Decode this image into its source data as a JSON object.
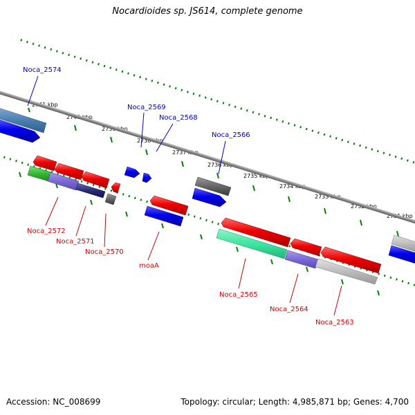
{
  "title": "Nocardioides sp. JS614, complete genome",
  "footer": {
    "accession": "Accession: NC_008699",
    "summary": "Topology: circular; Length: 4,985,871 bp; Genes: 4,700"
  },
  "colors": {
    "backbone": "#808080",
    "tick": "#008000",
    "forward_label": "#0000c0",
    "reverse_label": "#d00000"
  },
  "kbp_labels": [
    "2741 kbp",
    "2740 kbp",
    "2739 kbp",
    "2738 kbp",
    "2737 kbp",
    "2736 kbp",
    "2735 kbp",
    "2734 kbp",
    "2733 kbp",
    "2732 kbp",
    "2731 kbp"
  ],
  "genes": [
    {
      "name": "Noca_2574",
      "strand": "forward"
    },
    {
      "name": "Noca_2569",
      "strand": "forward"
    },
    {
      "name": "Noca_2568",
      "strand": "forward"
    },
    {
      "name": "Noca_2566",
      "strand": "forward"
    },
    {
      "name": "Noca_2572",
      "strand": "reverse"
    },
    {
      "name": "Noca_2571",
      "strand": "reverse"
    },
    {
      "name": "Noca_2570",
      "strand": "reverse"
    },
    {
      "name": "moaA",
      "strand": "reverse"
    },
    {
      "name": "Noca_2565",
      "strand": "reverse"
    },
    {
      "name": "Noca_2564",
      "strand": "reverse"
    },
    {
      "name": "Noca_2563",
      "strand": "reverse"
    }
  ]
}
